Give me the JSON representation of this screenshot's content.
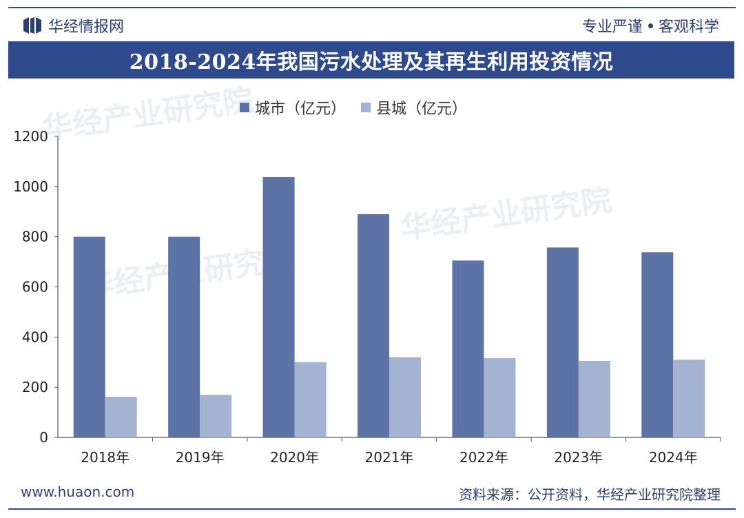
{
  "header": {
    "brand": "华经情报网",
    "slogan_left": "专业严谨",
    "slogan_right": "客观科学"
  },
  "title": "2018-2024年我国污水处理及其再生利用投资情况",
  "watermark": "华经产业研究院",
  "footer": {
    "site": "www.huaon.com",
    "source": "资料来源：公开资料，华经产业研究院整理"
  },
  "colors": {
    "primary": "#5d73a6",
    "secondary": "#a3b3d1",
    "title_bg": "#2f4a8c"
  },
  "chart_data": {
    "type": "bar",
    "title": "2018-2024年我国污水处理及其再生利用投资情况",
    "categories": [
      "2018年",
      "2019年",
      "2020年",
      "2021年",
      "2022年",
      "2023年",
      "2024年"
    ],
    "series": [
      {
        "name": "城市（亿元）",
        "values": [
          800,
          800,
          1038,
          890,
          705,
          757,
          738
        ]
      },
      {
        "name": "县城（亿元）",
        "values": [
          162,
          170,
          300,
          320,
          316,
          305,
          310
        ]
      }
    ],
    "yticks": [
      0,
      200,
      400,
      600,
      800,
      1000,
      1200
    ],
    "ylim": [
      0,
      1200
    ],
    "xlabel": "",
    "ylabel": "",
    "grid": false,
    "legend": "top-center"
  }
}
